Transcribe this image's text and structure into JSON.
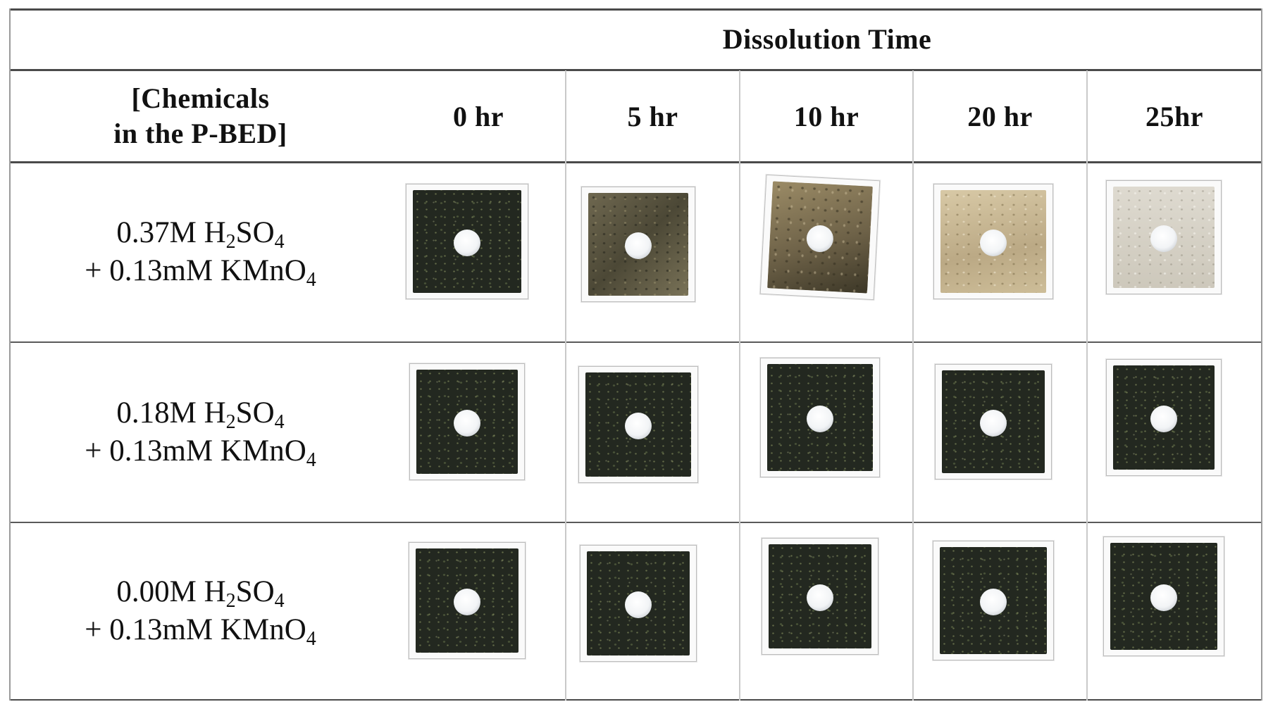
{
  "table": {
    "group_header": "Dissolution Time",
    "row_header_line1": "[Chemicals",
    "row_header_line2": "in the P-BED]",
    "time_columns": [
      "0 hr",
      "5 hr",
      "10 hr",
      "20 hr",
      "25hr"
    ],
    "rows": [
      {
        "line1": {
          "pre": "0.37M H",
          "sub1": "2",
          "mid": "SO",
          "sub2": "4"
        },
        "line2": {
          "pre": "+ 0.13mM KMnO",
          "sub": "4"
        },
        "plate_appearance": [
          "dark",
          "mid",
          "tan",
          "light",
          "pale"
        ]
      },
      {
        "line1": {
          "pre": "0.18M H",
          "sub1": "2",
          "mid": "SO",
          "sub2": "4"
        },
        "line2": {
          "pre": "+ 0.13mM KMnO",
          "sub": "4"
        },
        "plate_appearance": [
          "dark",
          "dark",
          "dark",
          "dark",
          "dark"
        ]
      },
      {
        "line1": {
          "pre": "0.00M H",
          "sub1": "2",
          "mid": "SO",
          "sub2": "4"
        },
        "line2": {
          "pre": "+ 0.13mM KMnO",
          "sub": "4"
        },
        "plate_appearance": [
          "dark",
          "dark",
          "dark",
          "dark",
          "dark"
        ]
      }
    ]
  }
}
